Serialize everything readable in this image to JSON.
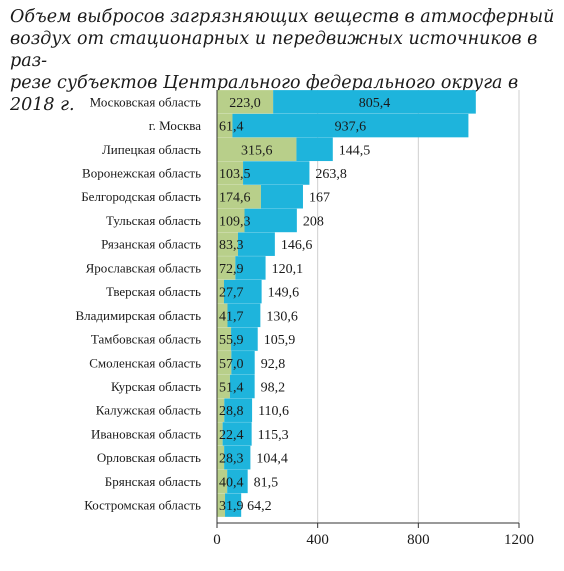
{
  "title": "Объем выбросов загрязняющих веществ в атмосферный\nвоздух от стационарных и передвижных источников в раз-\nрезе субъектов Центрального федерального округа в 2018 г.",
  "colors": {
    "stationary": "#b8cf8a",
    "mobile": "#1eb4dc",
    "grid": "#cfcfcf",
    "axis": "#333333"
  },
  "chart_data": {
    "type": "bar",
    "orientation": "horizontal",
    "stacked": true,
    "title": "Объем выбросов загрязняющих веществ в атмосферный воздух от стационарных и передвижных источников в разрезе субъектов Центрального федерального округа в 2018 г.",
    "categories": [
      "Московская область",
      "г. Москва",
      "Липецкая область",
      "Воронежская область",
      "Белгородская область",
      "Тульская область",
      "Рязанская область",
      "Ярославская область",
      "Тверская область",
      "Владимирская область",
      "Тамбовская область",
      "Смоленская область",
      "Курская область",
      "Калужская область",
      "Ивановская область",
      "Орловская область",
      "Брянская область",
      "Костромская область"
    ],
    "series": [
      {
        "color": "#b8cf8a",
        "values": [
          223.0,
          61.4,
          315.6,
          103.5,
          174.6,
          109.3,
          83.3,
          72.9,
          27.7,
          41.7,
          55.9,
          57.0,
          51.4,
          28.8,
          22.4,
          28.3,
          40.4,
          31.9
        ],
        "labels": [
          "223,0",
          "61,4",
          "315,6",
          "103,5",
          "174,6",
          "109,3",
          "83,3",
          "72,9",
          "27,7",
          "41,7",
          "55,9",
          "57,0",
          "51,4",
          "28,8",
          "22,4",
          "28,3",
          "40,4",
          "31,9"
        ]
      },
      {
        "color": "#1eb4dc",
        "values": [
          805.4,
          937.6,
          144.5,
          263.8,
          167,
          208,
          146.6,
          120.1,
          149.6,
          130.6,
          105.9,
          92.8,
          98.2,
          110.6,
          115.3,
          104.4,
          81.5,
          64.2
        ],
        "labels": [
          "805,4",
          "937,6",
          "144,5",
          "263,8",
          "167",
          "208",
          "146,6",
          "120,1",
          "149,6",
          "130,6",
          "105,9",
          "92,8",
          "98,2",
          "110,6",
          "115,3",
          "104,4",
          "81,5",
          "64,2"
        ]
      }
    ],
    "xlim": [
      0,
      1200
    ],
    "xticks": [
      0,
      400,
      800,
      1200
    ],
    "grid": true,
    "legend": "none"
  }
}
